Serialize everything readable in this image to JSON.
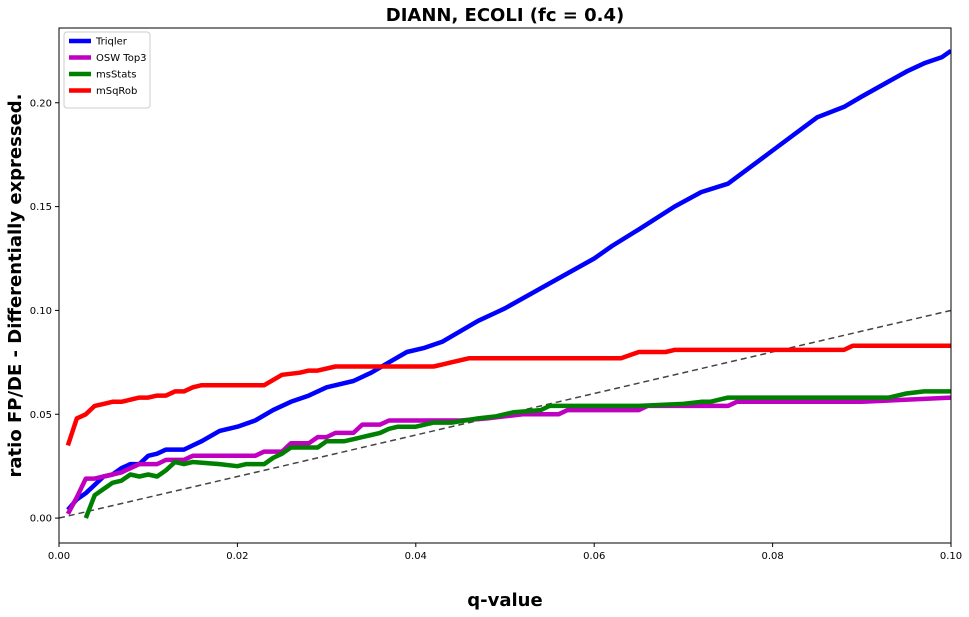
{
  "chart_data": {
    "type": "line",
    "title": "DIANN, ECOLI (fc = 0.4)",
    "xlabel": "q-value",
    "ylabel": "ratio FP/DE - Differentially expressed.",
    "xlim": [
      0.0,
      0.1
    ],
    "ylim": [
      -0.012,
      0.236
    ],
    "xticks": [
      0.0,
      0.02,
      0.04,
      0.06,
      0.08,
      0.1
    ],
    "xtick_labels": [
      "0.00",
      "0.02",
      "0.04",
      "0.06",
      "0.08",
      "0.10"
    ],
    "yticks": [
      0.0,
      0.05,
      0.1,
      0.15,
      0.2
    ],
    "ytick_labels": [
      "0.00",
      "0.05",
      "0.10",
      "0.15",
      "0.20"
    ],
    "grid": false,
    "legend_position": "top-left",
    "reference_line": {
      "x": [
        0.0,
        0.1
      ],
      "y": [
        0.0,
        0.1
      ],
      "color": "#444444",
      "style": "dashed"
    },
    "series": [
      {
        "name": "Triqler",
        "color": "#0000ff",
        "x": [
          0.001,
          0.002,
          0.003,
          0.004,
          0.005,
          0.006,
          0.007,
          0.008,
          0.009,
          0.01,
          0.011,
          0.012,
          0.013,
          0.014,
          0.015,
          0.016,
          0.018,
          0.02,
          0.022,
          0.024,
          0.026,
          0.028,
          0.03,
          0.033,
          0.035,
          0.037,
          0.039,
          0.041,
          0.043,
          0.045,
          0.047,
          0.049,
          0.05,
          0.055,
          0.06,
          0.062,
          0.065,
          0.069,
          0.072,
          0.075,
          0.08,
          0.085,
          0.088,
          0.09,
          0.095,
          0.097,
          0.099,
          0.1
        ],
        "y": [
          0.004,
          0.009,
          0.012,
          0.016,
          0.02,
          0.021,
          0.024,
          0.026,
          0.026,
          0.03,
          0.031,
          0.033,
          0.033,
          0.033,
          0.035,
          0.037,
          0.042,
          0.044,
          0.047,
          0.052,
          0.056,
          0.059,
          0.063,
          0.066,
          0.07,
          0.075,
          0.08,
          0.082,
          0.085,
          0.09,
          0.095,
          0.099,
          0.101,
          0.113,
          0.125,
          0.131,
          0.139,
          0.15,
          0.157,
          0.161,
          0.177,
          0.193,
          0.198,
          0.203,
          0.215,
          0.219,
          0.222,
          0.225
        ]
      },
      {
        "name": "OSW Top3",
        "color": "#c000c0",
        "x": [
          0.001,
          0.002,
          0.003,
          0.004,
          0.005,
          0.006,
          0.007,
          0.008,
          0.009,
          0.01,
          0.011,
          0.012,
          0.014,
          0.015,
          0.018,
          0.02,
          0.022,
          0.023,
          0.025,
          0.026,
          0.028,
          0.029,
          0.03,
          0.031,
          0.033,
          0.034,
          0.036,
          0.037,
          0.04,
          0.045,
          0.048,
          0.05,
          0.052,
          0.056,
          0.057,
          0.065,
          0.066,
          0.07,
          0.075,
          0.076,
          0.09,
          0.1
        ],
        "y": [
          0.002,
          0.01,
          0.019,
          0.019,
          0.02,
          0.021,
          0.022,
          0.024,
          0.026,
          0.026,
          0.026,
          0.028,
          0.028,
          0.03,
          0.03,
          0.03,
          0.03,
          0.032,
          0.032,
          0.036,
          0.036,
          0.039,
          0.039,
          0.041,
          0.041,
          0.045,
          0.045,
          0.047,
          0.047,
          0.047,
          0.048,
          0.049,
          0.05,
          0.05,
          0.052,
          0.052,
          0.054,
          0.054,
          0.054,
          0.056,
          0.056,
          0.058
        ]
      },
      {
        "name": "msStats",
        "color": "#008000",
        "x": [
          0.003,
          0.004,
          0.005,
          0.006,
          0.007,
          0.008,
          0.009,
          0.01,
          0.011,
          0.012,
          0.013,
          0.014,
          0.015,
          0.018,
          0.02,
          0.021,
          0.022,
          0.023,
          0.024,
          0.025,
          0.026,
          0.027,
          0.029,
          0.03,
          0.032,
          0.033,
          0.034,
          0.035,
          0.036,
          0.037,
          0.038,
          0.04,
          0.042,
          0.044,
          0.047,
          0.049,
          0.051,
          0.054,
          0.055,
          0.058,
          0.065,
          0.07,
          0.072,
          0.073,
          0.075,
          0.078,
          0.085,
          0.09,
          0.093,
          0.095,
          0.097,
          0.1
        ],
        "y": [
          0.0,
          0.011,
          0.014,
          0.017,
          0.018,
          0.021,
          0.02,
          0.021,
          0.02,
          0.023,
          0.027,
          0.026,
          0.027,
          0.026,
          0.025,
          0.026,
          0.026,
          0.026,
          0.029,
          0.031,
          0.034,
          0.034,
          0.034,
          0.037,
          0.037,
          0.038,
          0.039,
          0.04,
          0.041,
          0.043,
          0.044,
          0.044,
          0.046,
          0.046,
          0.048,
          0.049,
          0.051,
          0.052,
          0.054,
          0.054,
          0.054,
          0.055,
          0.056,
          0.056,
          0.058,
          0.058,
          0.058,
          0.058,
          0.058,
          0.06,
          0.061,
          0.061
        ]
      },
      {
        "name": "mSqRob",
        "color": "#ff0000",
        "x": [
          0.001,
          0.002,
          0.003,
          0.004,
          0.005,
          0.006,
          0.007,
          0.008,
          0.009,
          0.01,
          0.011,
          0.012,
          0.013,
          0.014,
          0.015,
          0.016,
          0.02,
          0.023,
          0.025,
          0.027,
          0.028,
          0.029,
          0.031,
          0.035,
          0.04,
          0.042,
          0.043,
          0.044,
          0.046,
          0.05,
          0.055,
          0.06,
          0.063,
          0.065,
          0.068,
          0.069,
          0.07,
          0.075,
          0.08,
          0.085,
          0.088,
          0.089,
          0.095,
          0.1
        ],
        "y": [
          0.035,
          0.048,
          0.05,
          0.054,
          0.055,
          0.056,
          0.056,
          0.057,
          0.058,
          0.058,
          0.059,
          0.059,
          0.061,
          0.061,
          0.063,
          0.064,
          0.064,
          0.064,
          0.069,
          0.07,
          0.071,
          0.071,
          0.073,
          0.073,
          0.073,
          0.073,
          0.074,
          0.075,
          0.077,
          0.077,
          0.077,
          0.077,
          0.077,
          0.08,
          0.08,
          0.081,
          0.081,
          0.081,
          0.081,
          0.081,
          0.081,
          0.083,
          0.083,
          0.083
        ]
      }
    ]
  }
}
